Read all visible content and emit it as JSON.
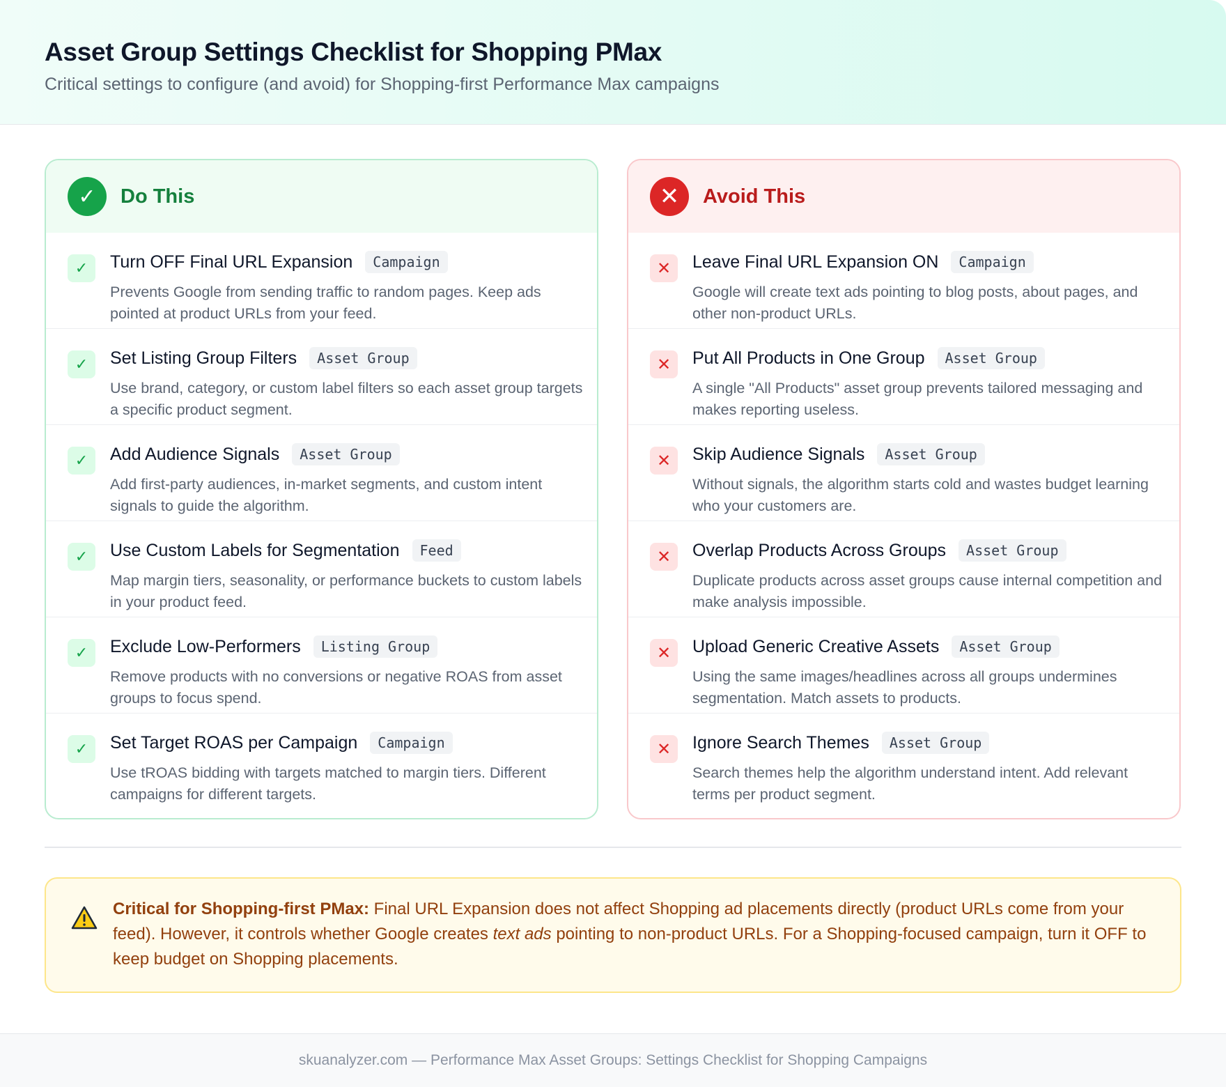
{
  "header": {
    "title": "Asset Group Settings Checklist for Shopping PMax",
    "subtitle": "Critical settings to configure (and avoid) for Shopping-first Performance Max campaigns"
  },
  "do_column": {
    "icon": "check-circle-icon",
    "accent": "#16a34a",
    "title": "Do This",
    "items": [
      {
        "title": "Turn OFF Final URL Expansion",
        "tag": "Campaign",
        "desc": "Prevents Google from sending traffic to random pages. Keep ads pointed at product URLs from your feed."
      },
      {
        "title": "Set Listing Group Filters",
        "tag": "Asset Group",
        "desc": "Use brand, category, or custom label filters so each asset group targets a specific product segment."
      },
      {
        "title": "Add Audience Signals",
        "tag": "Asset Group",
        "desc": "Add first-party audiences, in-market segments, and custom intent signals to guide the algorithm."
      },
      {
        "title": "Use Custom Labels for Segmentation",
        "tag": "Feed",
        "desc": "Map margin tiers, seasonality, or performance buckets to custom labels in your product feed."
      },
      {
        "title": "Exclude Low-Performers",
        "tag": "Listing Group",
        "desc": "Remove products with no conversions or negative ROAS from asset groups to focus spend."
      },
      {
        "title": "Set Target ROAS per Campaign",
        "tag": "Campaign",
        "desc": "Use tROAS bidding with targets matched to margin tiers. Different campaigns for different targets."
      }
    ]
  },
  "avoid_column": {
    "icon": "x-circle-icon",
    "accent": "#dc2626",
    "title": "Avoid This",
    "items": [
      {
        "title": "Leave Final URL Expansion ON",
        "tag": "Campaign",
        "desc": "Google will create text ads pointing to blog posts, about pages, and other non-product URLs."
      },
      {
        "title": "Put All Products in One Group",
        "tag": "Asset Group",
        "desc": "A single \"All Products\" asset group prevents tailored messaging and makes reporting useless."
      },
      {
        "title": "Skip Audience Signals",
        "tag": "Asset Group",
        "desc": "Without signals, the algorithm starts cold and wastes budget learning who your customers are."
      },
      {
        "title": "Overlap Products Across Groups",
        "tag": "Asset Group",
        "desc": "Duplicate products across asset groups cause internal competition and make analysis impossible."
      },
      {
        "title": "Upload Generic Creative Assets",
        "tag": "Asset Group",
        "desc": "Using the same images/headlines across all groups undermines segmentation. Match assets to products."
      },
      {
        "title": "Ignore Search Themes",
        "tag": "Asset Group",
        "desc": "Search themes help the algorithm understand intent. Add relevant terms per product segment."
      }
    ]
  },
  "callout": {
    "icon": "warning-icon",
    "lead": "Critical for Shopping-first PMax:",
    "text_before": " Final URL Expansion does not affect Shopping ad placements directly (product URLs come from your feed). However, it controls whether Google creates ",
    "emphasis": "text ads",
    "text_after": " pointing to non-product URLs. For a Shopping-focused campaign, turn it OFF to keep budget on Shopping placements."
  },
  "footer": {
    "text": "skuanalyzer.com — Performance Max Asset Groups: Settings Checklist for Shopping Campaigns"
  }
}
